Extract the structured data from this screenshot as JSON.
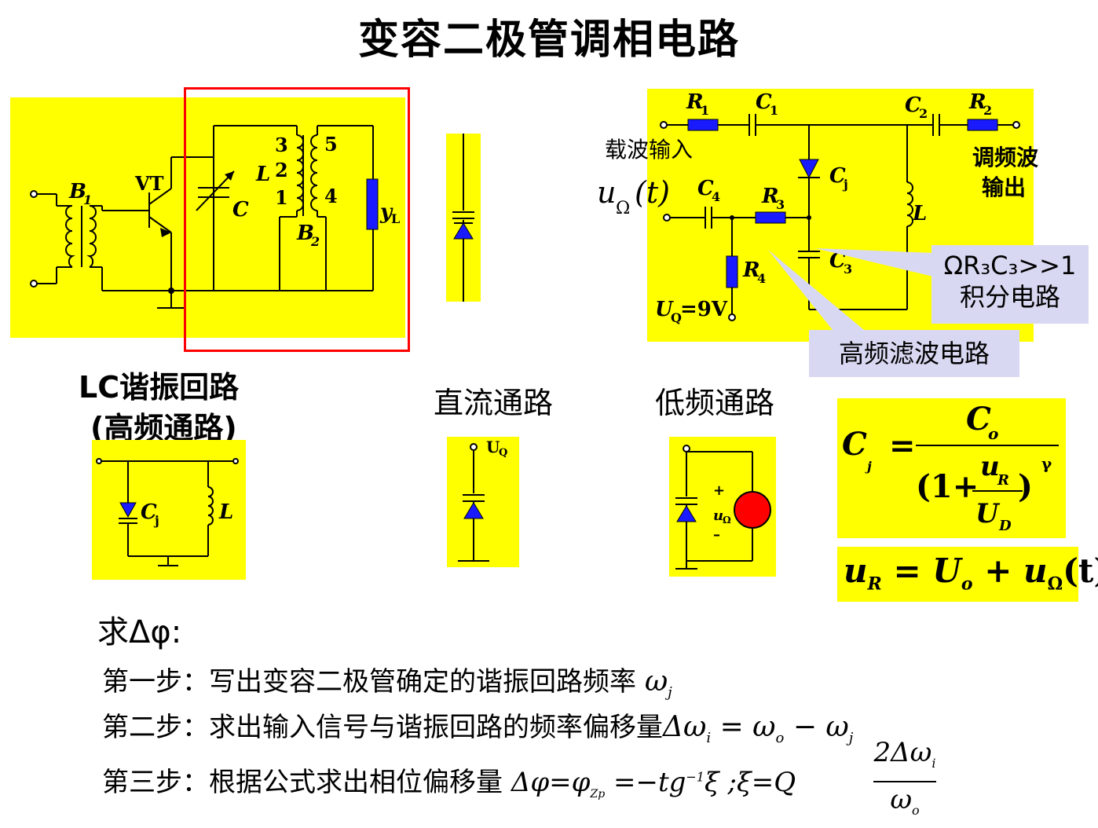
{
  "title": "变容二极管调相电路",
  "left_circuit": {
    "B1": "B",
    "B1_sub": "1",
    "VT": "VT",
    "C": "C",
    "L": "L",
    "B2": "B",
    "B2_sub": "2",
    "yL": "y",
    "yL_sub": "L",
    "tap3": "3",
    "tap2": "2",
    "tap1": "1",
    "tap5": "5",
    "tap4": "4"
  },
  "right_circuit": {
    "R1": "R",
    "R1_sub": "1",
    "C1": "C",
    "C1_sub": "1",
    "C2": "C",
    "C2_sub": "2",
    "R2": "R",
    "R2_sub": "2",
    "carrier_in": "载波输入",
    "fm_out_1": "调频波",
    "fm_out_2": "输出",
    "u_omega": "u",
    "u_omega_sub": "Ω",
    "u_omega_arg": "(t)",
    "C4": "C",
    "C4_sub": "4",
    "R3": "R",
    "R3_sub": "3",
    "Cj": "C",
    "Cj_sub": "j",
    "L": "L",
    "C3": "C",
    "C3_sub": "3",
    "R4": "R",
    "R4_sub": "4",
    "UQ": "U",
    "UQ_sub": "Q",
    "UQ_val": "=9V"
  },
  "callouts": {
    "integrator_1": "ΩR₃C₃>>1",
    "integrator_2": "积分电路",
    "hf_filter": "高频滤波电路"
  },
  "captions": {
    "lc_1": "LC谐振回路",
    "lc_2": "(高频通路)",
    "dc": "直流通路",
    "lf": "低频通路"
  },
  "small_circuits": {
    "lc_cj": "C",
    "lc_cj_sub": "j",
    "lc_L": "L",
    "dc_uq": "U",
    "dc_uq_sub": "Q",
    "lf_plus": "+",
    "lf_u": "u",
    "lf_u_sub": "Ω",
    "lf_minus": "–"
  },
  "formulas": {
    "cj_lhs": "C",
    "cj_lhs_sub": "j",
    "eq": "=",
    "num": "C",
    "num_sub": "o",
    "den_open": "(1+",
    "den_u": "u",
    "den_u_sub": "R",
    "den_U": "U",
    "den_U_sub": "D",
    "den_close": ")",
    "gamma": "γ",
    "ur_full": "u",
    "ur_sub": "R",
    "ur_rest": " = U",
    "ur_o": "o",
    "ur_plus": " + u",
    "ur_omega": "Ω",
    "ur_t": "(t)"
  },
  "steps": {
    "ask": "求Δφ:",
    "step1": "第一步：写出变容二极管确定的谐振回路频率",
    "step1_math": "ω",
    "step1_sub": "j",
    "step2": "第二步：求出输入信号与谐振回路的频率偏移量",
    "step2_math_1": "Δω",
    "step2_sub_i": "i",
    "step2_math_2": " = ω",
    "step2_sub_o": "o",
    "step2_math_3": " − ω",
    "step2_sub_j": "j",
    "step3": "第三步：根据公式求出相位偏移量",
    "step3_math_1": "Δφ=φ",
    "step3_sub_zp": "Zp",
    "step3_math_2": " =−tg",
    "step3_sup": "−1",
    "step3_math_3": "ξ ;ξ=Q",
    "step3_num": "2Δω",
    "step3_num_sub": "i",
    "step3_den": "ω",
    "step3_den_sub": "o"
  },
  "colors": {
    "highlight": "#ffff00",
    "component_blue": "#1a1aff",
    "frame_red": "#ff0000",
    "callout": "#d8d8f2",
    "source_red": "#ff0000"
  }
}
